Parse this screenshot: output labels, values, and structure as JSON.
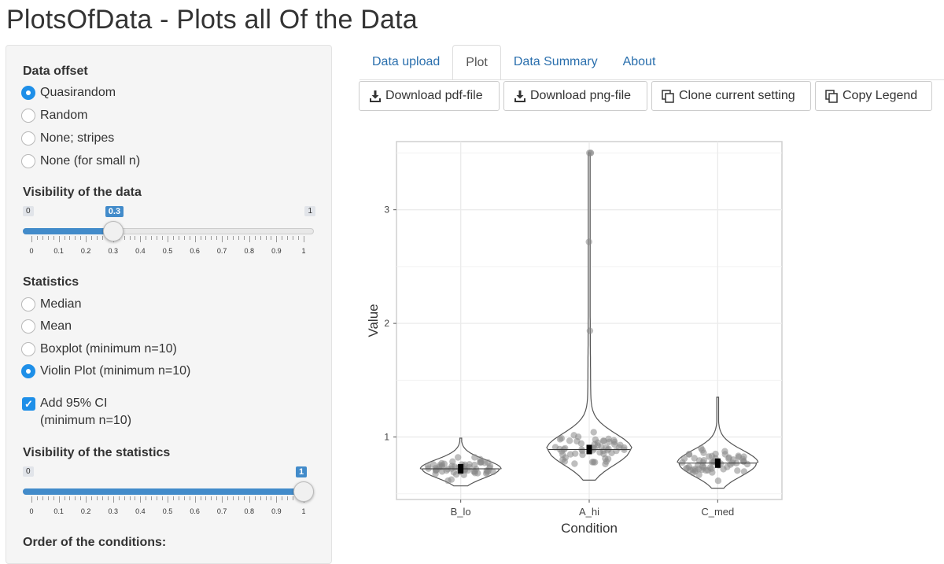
{
  "app": {
    "title": "PlotsOfData - Plots all Of the Data"
  },
  "sidebar": {
    "data_offset": {
      "label": "Data offset",
      "options": [
        "Quasirandom",
        "Random",
        "None; stripes",
        "None (for small n)"
      ],
      "selected": "Quasirandom"
    },
    "visibility_data": {
      "label": "Visibility of the data",
      "min": "0",
      "max": "1",
      "value": "0.3",
      "value_fraction": 0.3,
      "tick_labels": [
        "0",
        "0.1",
        "0.2",
        "0.3",
        "0.4",
        "0.5",
        "0.6",
        "0.7",
        "0.8",
        "0.9",
        "1"
      ]
    },
    "statistics": {
      "label": "Statistics",
      "options": [
        "Median",
        "Mean",
        "Boxplot (minimum n=10)",
        "Violin Plot (minimum n=10)"
      ],
      "selected": "Violin Plot (minimum n=10)"
    },
    "add_ci": {
      "line1": "Add 95% CI",
      "line2": "(minimum n=10)",
      "checked": true
    },
    "visibility_stats": {
      "label": "Visibility of the statistics",
      "min": "0",
      "max": "1",
      "value": "1",
      "value_fraction": 1.0,
      "tick_labels": [
        "0",
        "0.1",
        "0.2",
        "0.3",
        "0.4",
        "0.5",
        "0.6",
        "0.7",
        "0.8",
        "0.9",
        "1"
      ]
    },
    "order_label": "Order of the conditions:"
  },
  "tabs": [
    {
      "label": "Data upload",
      "active": false
    },
    {
      "label": "Plot",
      "active": true
    },
    {
      "label": "Data Summary",
      "active": false
    },
    {
      "label": "About",
      "active": false
    }
  ],
  "toolbar": {
    "download_pdf": "Download pdf-file",
    "download_png": "Download png-file",
    "clone": "Clone current setting",
    "copy_legend": "Copy Legend"
  },
  "chart_data": {
    "type": "violin",
    "xlabel": "Condition",
    "ylabel": "Value",
    "categories": [
      "B_lo",
      "A_hi",
      "C_med"
    ],
    "y_ticks": [
      "1",
      "2",
      "3"
    ],
    "ylim": [
      0.45,
      3.6
    ],
    "grid": true,
    "series": [
      {
        "category": "B_lo",
        "min": 0.57,
        "max": 0.99,
        "median": 0.72
      },
      {
        "category": "A_hi",
        "min": 0.62,
        "max": 3.5,
        "median": 0.89
      },
      {
        "category": "C_med",
        "min": 0.55,
        "max": 1.35,
        "median": 0.77
      }
    ],
    "colors": {
      "points": "#888888",
      "violin": "#555555",
      "grid": "#ebebeb"
    }
  }
}
